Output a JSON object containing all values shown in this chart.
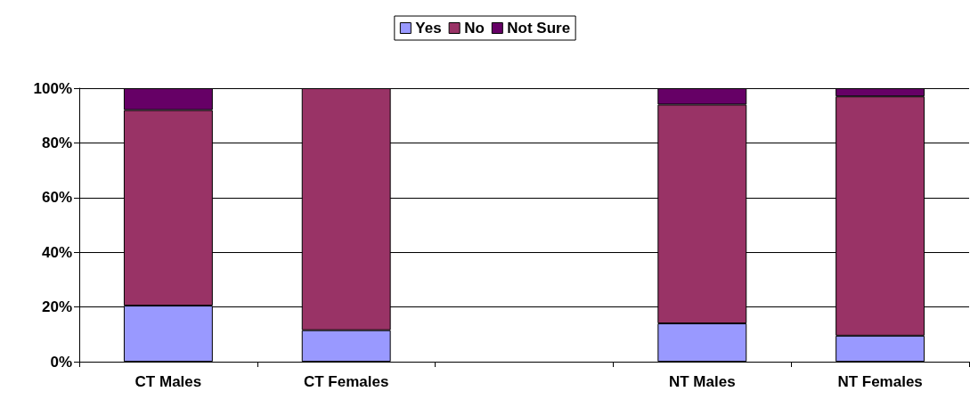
{
  "chart_data": {
    "type": "bar",
    "stacked": true,
    "categories": [
      "CT Males",
      "CT Females",
      null,
      "NT Males",
      "NT Females"
    ],
    "series": [
      {
        "name": "Yes",
        "color": "#9999ff",
        "values": [
          20.5,
          11.5,
          null,
          14,
          9.5
        ]
      },
      {
        "name": "No",
        "color": "#993366",
        "values": [
          71.5,
          88.5,
          null,
          80,
          87.5
        ]
      },
      {
        "name": "Not Sure",
        "color": "#660066",
        "values": [
          8,
          null,
          null,
          6,
          3
        ]
      }
    ],
    "ylim": [
      0,
      100
    ],
    "yticks": [
      {
        "value": 0,
        "label": "0%"
      },
      {
        "value": 20,
        "label": "20%"
      },
      {
        "value": 40,
        "label": "40%"
      },
      {
        "value": 60,
        "label": "60%"
      },
      {
        "value": 80,
        "label": "80%"
      },
      {
        "value": 100,
        "label": "100%"
      }
    ],
    "grid": "y",
    "legend": "top"
  }
}
